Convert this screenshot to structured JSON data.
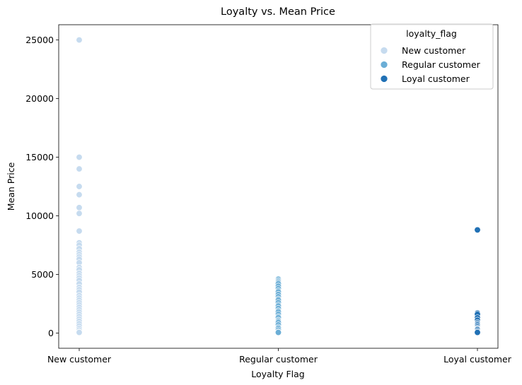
{
  "chart_data": {
    "type": "scatter",
    "title": "Loyalty vs. Mean Price",
    "xlabel": "Loyalty Flag",
    "ylabel": "Mean Price",
    "categories": [
      "New customer",
      "Regular customer",
      "Loyal customer"
    ],
    "ylim": [
      -1300,
      26300
    ],
    "yticks": [
      0,
      5000,
      10000,
      15000,
      20000,
      25000
    ],
    "grid": false,
    "legend": {
      "title": "loyalty_flag",
      "placement": "top-right",
      "entries": [
        "New customer",
        "Regular customer",
        "Loyal customer"
      ]
    },
    "colors": {
      "New customer": "#c6dbef",
      "Regular customer": "#6baed6",
      "Loyal customer": "#2171b5"
    },
    "series": [
      {
        "name": "New customer",
        "x": "New customer",
        "values": [
          25000,
          15000,
          14000,
          12500,
          11800,
          10700,
          10200,
          8700,
          7700,
          7500,
          7200,
          6900,
          6700,
          6500,
          6300,
          6000,
          5600,
          5400,
          5100,
          4900,
          4700,
          4500,
          4200,
          3900,
          3700,
          3500,
          3200,
          3000,
          2800,
          2600,
          2400,
          2200,
          2000,
          1800,
          1600,
          1400,
          1200,
          1000,
          800,
          600,
          400,
          250,
          100,
          50
        ]
      },
      {
        "name": "Regular customer",
        "x": "Regular customer",
        "values": [
          4600,
          4500,
          4400,
          4300,
          4200,
          4000,
          3800,
          3600,
          3500,
          3300,
          3100,
          2900,
          2800,
          2600,
          2400,
          2300,
          2100,
          1900,
          1800,
          1600,
          1400,
          1300,
          1100,
          1000,
          900,
          700,
          500,
          400,
          250,
          100,
          50
        ]
      },
      {
        "name": "Loyal customer",
        "x": "Loyal customer",
        "values": [
          8800,
          1700,
          1600,
          1300,
          1100,
          900,
          800,
          700,
          600,
          500,
          400,
          350,
          300,
          200,
          100,
          50
        ]
      }
    ]
  }
}
